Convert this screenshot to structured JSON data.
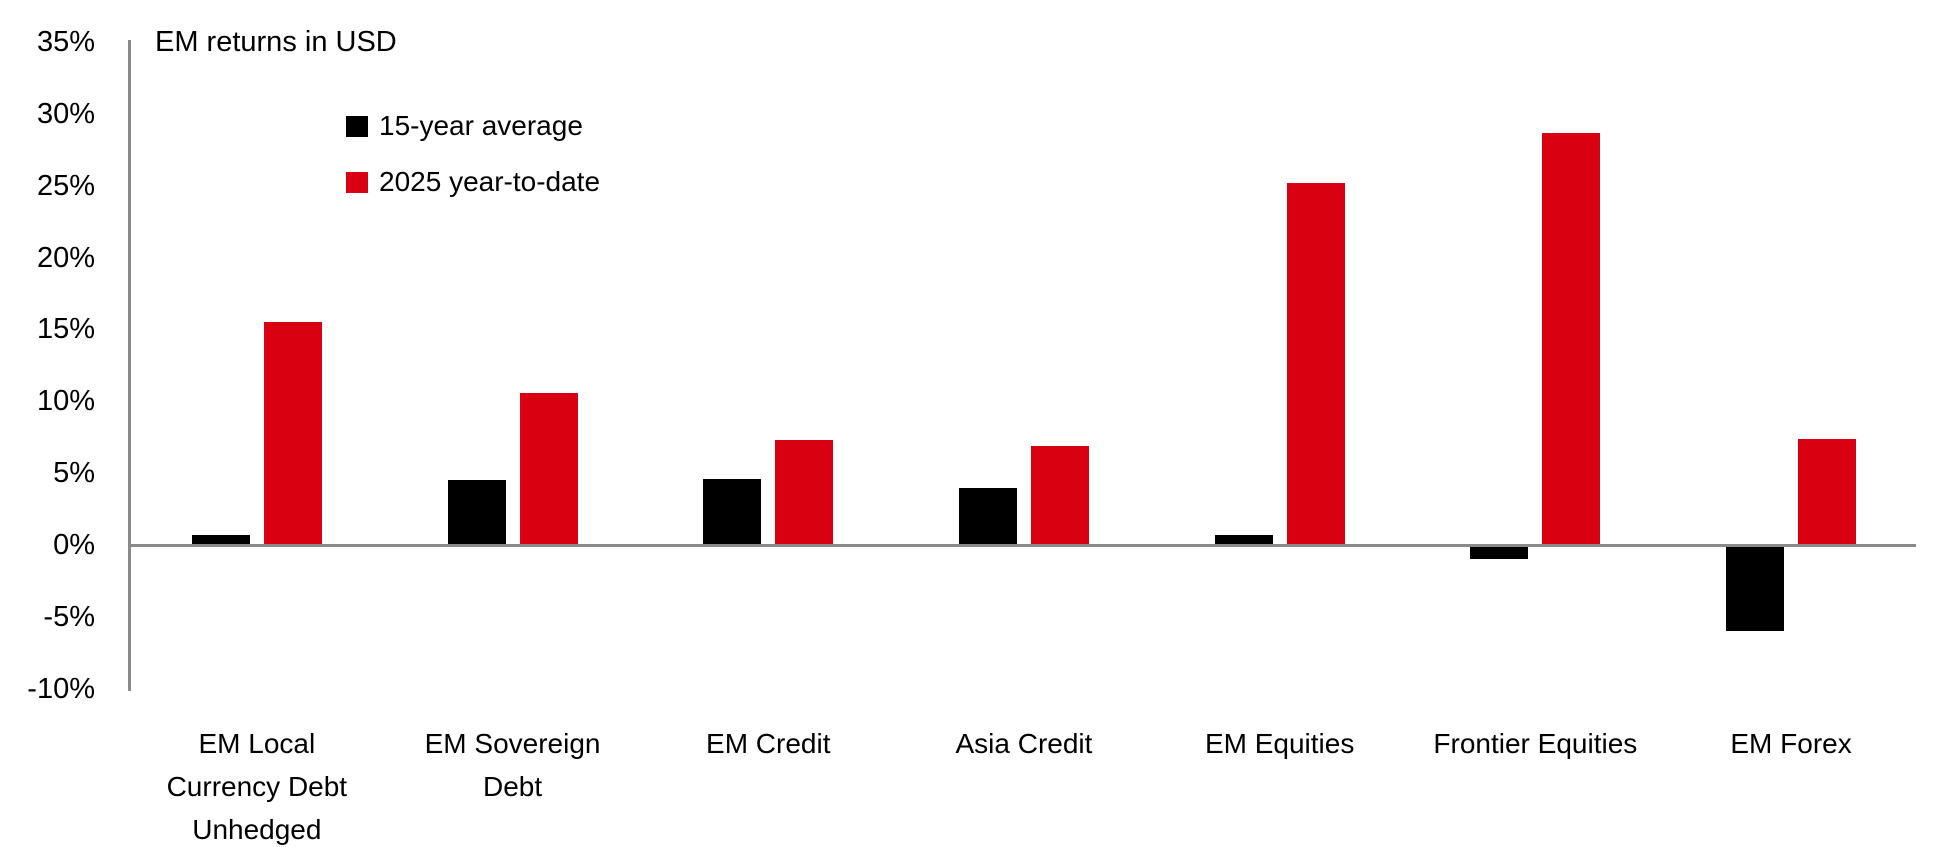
{
  "chart_data": {
    "type": "bar",
    "title": "EM returns in USD",
    "categories": [
      "EM Local\nCurrency Debt\nUnhedged",
      "EM Sovereign\nDebt",
      "EM Credit",
      "Asia Credit",
      "EM Equities",
      "Frontier Equities",
      "EM Forex"
    ],
    "series": [
      {
        "name": "15-year average",
        "color": "#000000",
        "values": [
          0.7,
          4.5,
          4.6,
          4.0,
          0.7,
          -1.0,
          -6.0
        ]
      },
      {
        "name": "2025 year-to-date",
        "color": "#d90012",
        "values": [
          15.5,
          10.6,
          7.3,
          6.9,
          25.2,
          28.7,
          7.4
        ]
      }
    ],
    "ylim": [
      -10,
      35
    ],
    "ytick_step": 5,
    "yticks": [
      "35%",
      "30%",
      "25%",
      "20%",
      "15%",
      "10%",
      "5%",
      "0%",
      "-5%",
      "-10%"
    ],
    "ytick_suffix": "%",
    "xlabel": "",
    "ylabel": "",
    "grid": "off",
    "legend_position": "inside-top-left",
    "axis_color": "#8a8a8a",
    "background_color": "#ffffff",
    "text_color": "#000000"
  }
}
